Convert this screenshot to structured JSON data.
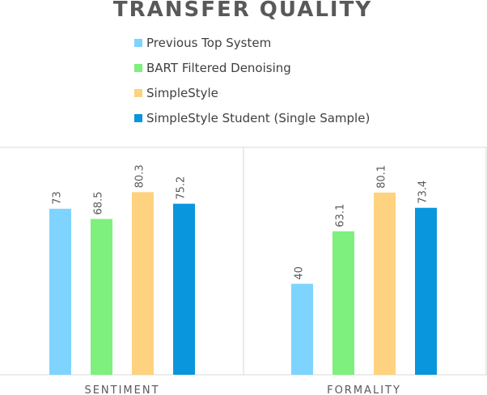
{
  "chart_data": {
    "type": "bar",
    "title": "TRANSFER QUALITY",
    "categories": [
      "SENTIMENT",
      "FORMALITY"
    ],
    "series": [
      {
        "name": "Previous Top System",
        "values": [
          73,
          40
        ],
        "color": "#7fd4ff"
      },
      {
        "name": "BART Filtered Denoising",
        "values": [
          68.5,
          63.1
        ],
        "color": "#7df07d"
      },
      {
        "name": "SimpleStyle",
        "values": [
          80.3,
          80.1
        ],
        "color": "#ffd27f"
      },
      {
        "name": "SimpleStyle Student (Single Sample)",
        "values": [
          75.2,
          73.4
        ],
        "color": "#0a96dd"
      }
    ],
    "data_labels": [
      [
        "73",
        "40"
      ],
      [
        "68.5",
        "63.1"
      ],
      [
        "80.3",
        "80.1"
      ],
      [
        "75.2",
        "73.4"
      ]
    ],
    "ylim": [
      0,
      100
    ],
    "grid": false,
    "legend_position": "top",
    "xlabel": "",
    "ylabel": ""
  }
}
